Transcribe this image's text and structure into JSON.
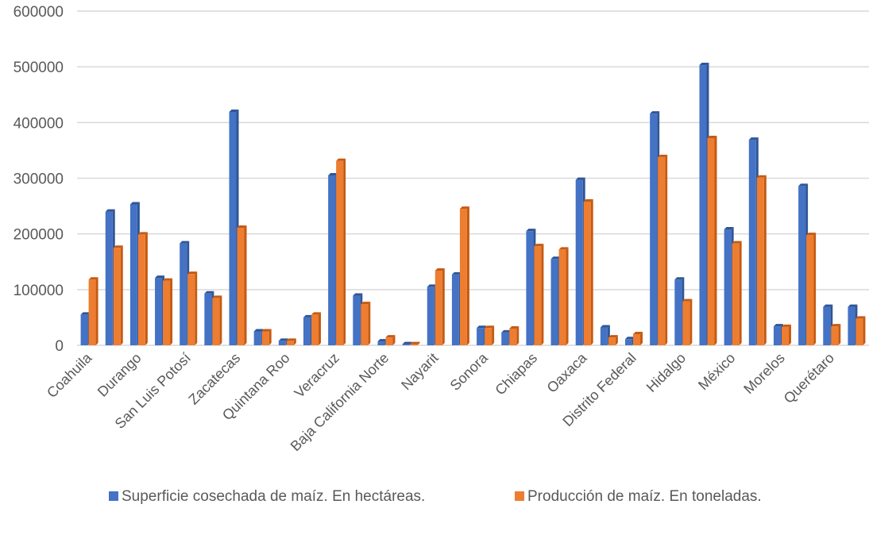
{
  "chart_data": {
    "type": "bar",
    "title": "",
    "xlabel": "",
    "ylabel": "",
    "ylim": [
      0,
      600000
    ],
    "yticks": [
      0,
      100000,
      200000,
      300000,
      400000,
      500000,
      600000
    ],
    "ytick_labels": [
      "0",
      "100000",
      "200000",
      "300000",
      "400000",
      "500000",
      "600000"
    ],
    "grid": true,
    "legend_position": "bottom",
    "categories": [
      "Coahuila",
      "",
      "Durango",
      "",
      "San Luis Potosí",
      "",
      "Zacatecas",
      "",
      "Quintana Roo",
      "",
      "Veracruz",
      "",
      "Baja California Norte",
      "",
      "Nayarit",
      "",
      "Sonora",
      "",
      "Chiapas",
      "",
      "Oaxaca",
      "",
      "Distrito Federal",
      "",
      "Hidalgo",
      "",
      "México",
      "",
      "Morelos",
      "",
      "Querétaro",
      ""
    ],
    "series": [
      {
        "name": "Superficie cosechada de maíz. En hectáreas.",
        "color": "#4472C4",
        "values": [
          55000,
          240000,
          253000,
          121000,
          183000,
          93000,
          419000,
          25000,
          8000,
          50000,
          305000,
          89000,
          7000,
          2000,
          105000,
          127000,
          31000,
          23000,
          205000,
          155000,
          297000,
          32000,
          11000,
          416000,
          118000,
          503000,
          208000,
          369000,
          34000,
          286000,
          69000,
          69000
        ]
      },
      {
        "name": "Producción de maíz. En toneladas.",
        "color": "#ED7D31",
        "values": [
          118000,
          175000,
          199000,
          116000,
          128000,
          85000,
          211000,
          25000,
          8000,
          55000,
          331000,
          74000,
          14000,
          2000,
          134000,
          245000,
          31000,
          30000,
          178000,
          172000,
          258000,
          14000,
          20000,
          338000,
          79000,
          372000,
          183000,
          301000,
          33000,
          198000,
          34000,
          48000
        ]
      }
    ]
  }
}
